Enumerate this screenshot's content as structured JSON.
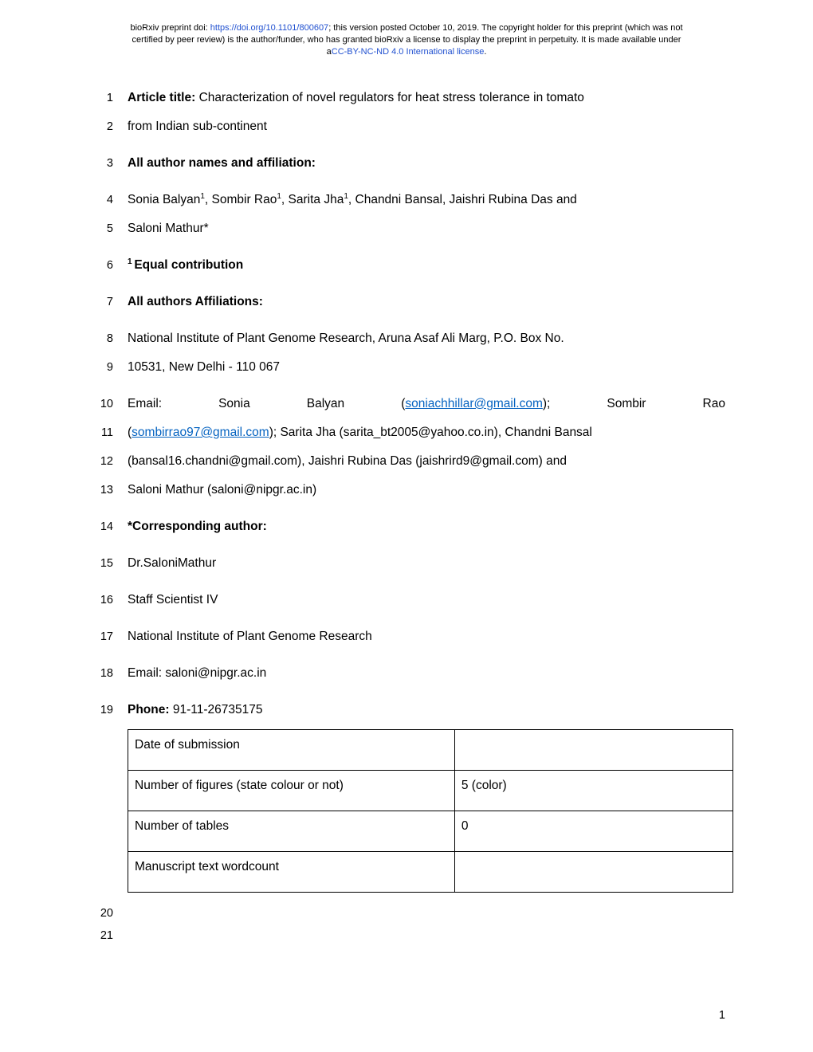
{
  "preprint": {
    "line1_pre": "bioRxiv preprint doi: ",
    "doi_url": "https://doi.org/10.1101/800607",
    "line1_post": "; this version posted October 10, 2019. The copyright holder for this preprint (which was not",
    "line2": "certified by peer review) is the author/funder, who has granted bioRxiv a license to display the preprint in perpetuity. It is made available under",
    "line3_pre": "a",
    "license": "CC-BY-NC-ND 4.0 International license",
    "line3_post": "."
  },
  "lines": {
    "l1_bold": "Article title:",
    "l1_rest": " Characterization of novel regulators for heat stress tolerance in tomato",
    "l2": "from Indian sub-continent",
    "l3": "All author names and affiliation:",
    "l4_a": "Sonia Balyan",
    "l4_b": ", Sombir Rao",
    "l4_c": ", Sarita Jha",
    "l4_d": ", Chandni Bansal, Jaishri Rubina Das and",
    "sup1": "1",
    "l5": "Saloni Mathur*",
    "l6_sup": "1 ",
    "l6": "Equal contribution",
    "l7": "All authors Affiliations:",
    "l8": "National Institute of Plant Genome Research, Aruna Asaf Ali Marg, P.O. Box No.",
    "l9": "10531, New Delhi - 110 067",
    "l10_a": "Email:",
    "l10_b": "Sonia",
    "l10_c": "Balyan",
    "l10_d": "(",
    "l10_email": "soniachhillar@gmail.com",
    "l10_e": ");",
    "l10_f": "Sombir",
    "l10_g": "Rao",
    "l11_a": "(",
    "l11_email": "sombirrao97@gmail.com",
    "l11_b": "); Sarita Jha (sarita_bt2005@yahoo.co.in), Chandni Bansal",
    "l12": "(bansal16.chandni@gmail.com), Jaishri Rubina Das (jaishrird9@gmail.com) and",
    "l13": "Saloni Mathur (saloni@nipgr.ac.in)",
    "l14": "*Corresponding author:",
    "l15": "Dr.SaloniMathur",
    "l16": "Staff Scientist IV",
    "l17": "National Institute of Plant Genome Research",
    "l18": "Email: saloni@nipgr.ac.in",
    "l19_bold": "Phone:",
    "l19_rest": " 91-11-26735175"
  },
  "line_numbers": {
    "n1": "1",
    "n2": "2",
    "n3": "3",
    "n4": "4",
    "n5": "5",
    "n6": "6",
    "n7": "7",
    "n8": "8",
    "n9": "9",
    "n10": "10",
    "n11": "11",
    "n12": "12",
    "n13": "13",
    "n14": "14",
    "n15": "15",
    "n16": "16",
    "n17": "17",
    "n18": "18",
    "n19": "19",
    "n20": "20",
    "n21": "21"
  },
  "table": {
    "r1c1": "Date of submission",
    "r1c2": "",
    "r2c1": "Number of figures (state colour or not)",
    "r2c2": "5 (color)",
    "r3c1": "Number of tables",
    "r3c2": "0",
    "r4c1": "Manuscript text wordcount",
    "r4c2": ""
  },
  "page_number": "1",
  "colors": {
    "link": "#0563c1",
    "doi_link": "#2050d0",
    "text": "#000000",
    "border": "#000000",
    "background": "#ffffff"
  },
  "typography": {
    "body_font": "Arial",
    "body_size_pt": 12,
    "line_number_size_pt": 11,
    "header_size_pt": 8
  }
}
